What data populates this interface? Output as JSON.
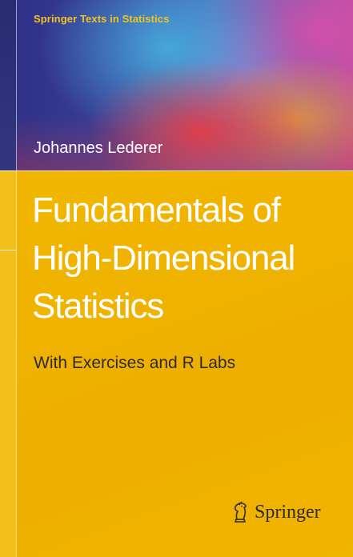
{
  "cover": {
    "series": "Springer Texts in Statistics",
    "author": "Johannes Lederer",
    "title_lines": [
      "Fundamentals of",
      "High-Dimensional",
      "Statistics"
    ],
    "subtitle": "With Exercises and R Labs",
    "publisher": "Springer"
  },
  "icons": {
    "publisher_logo": "springer-horse-icon"
  },
  "colors": {
    "background_yellow": "#f0b400",
    "series_text": "#f2c21f",
    "title_text": "#ffffff",
    "subtitle_text": "#2f2a35",
    "band_dark_blue": "#2e2f86",
    "band_red": "#e63c46"
  }
}
